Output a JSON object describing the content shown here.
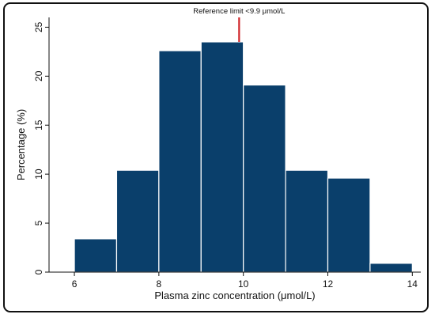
{
  "chart_data": {
    "type": "bar",
    "subtype": "histogram",
    "bins": [
      {
        "x0": 6,
        "x1": 7,
        "value": 3.4
      },
      {
        "x0": 7,
        "x1": 8,
        "value": 10.4
      },
      {
        "x0": 8,
        "x1": 9,
        "value": 22.6
      },
      {
        "x0": 9,
        "x1": 10,
        "value": 23.5
      },
      {
        "x0": 10,
        "x1": 11,
        "value": 19.1
      },
      {
        "x0": 11,
        "x1": 12,
        "value": 10.4
      },
      {
        "x0": 12,
        "x1": 13,
        "value": 9.6
      },
      {
        "x0": 13,
        "x1": 14,
        "value": 0.9
      }
    ],
    "xlabel": "Plasma zinc concentration (μmol/L)",
    "ylabel": "Percentage (%)",
    "xlim": [
      5.4,
      14.2
    ],
    "ylim": [
      0,
      26
    ],
    "xticks": [
      "6",
      "8",
      "10",
      "12",
      "14"
    ],
    "yticks": [
      "0",
      "5",
      "10",
      "15",
      "20",
      "25"
    ],
    "bar_color": "#0a3f6b",
    "grid": false,
    "reference_line": {
      "x": 9.9,
      "label": "Reference limit <9.9 μmol/L",
      "color": "#d0262a"
    }
  }
}
